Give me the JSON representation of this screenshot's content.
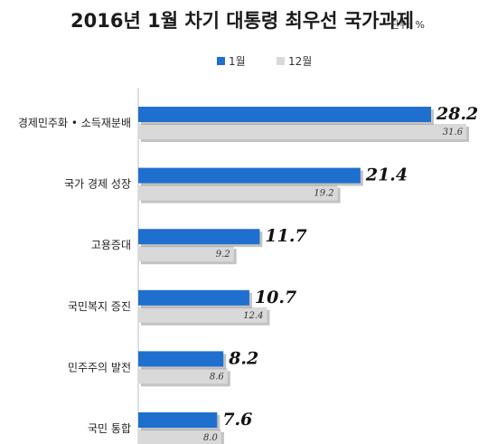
{
  "chart_data": {
    "type": "bar",
    "orientation": "horizontal",
    "title": "2016년 1월 차기 대통령 최우선 국가과제",
    "unit_label": "단위: %",
    "categories": [
      "경제민주화 • 소득재분배",
      "국가 경제 성장",
      "고용증대",
      "국민복지 증진",
      "민주주의 발전",
      "국민 통합"
    ],
    "series": [
      {
        "name": "1월",
        "values": [
          28.2,
          21.4,
          11.7,
          10.7,
          8.2,
          7.6
        ],
        "color": "#1f6fcf"
      },
      {
        "name": "12월",
        "values": [
          31.6,
          19.2,
          9.2,
          12.4,
          8.6,
          8.0
        ],
        "color": "#d9d9d9"
      }
    ],
    "value_labels": [
      [
        "28.2",
        "21.4",
        "11.7",
        "10.7",
        "8.2",
        "7.6"
      ],
      [
        "31.6",
        "19.2",
        "9.2",
        "12.4",
        "8.6",
        "8.0"
      ]
    ],
    "legend_position": "top-center",
    "grid": false,
    "xlim": [
      0,
      32
    ]
  }
}
